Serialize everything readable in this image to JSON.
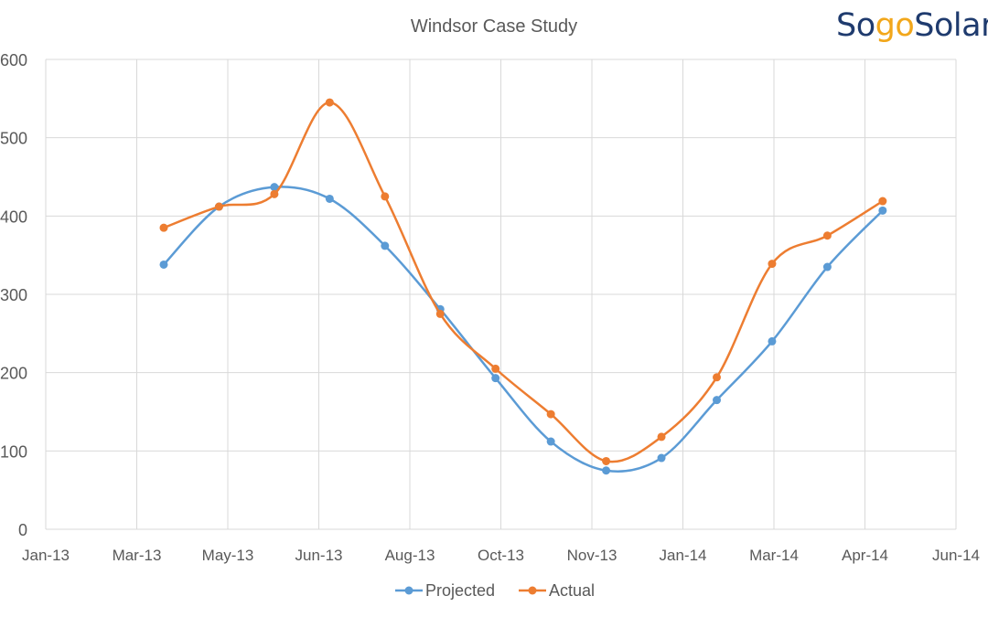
{
  "logo": {
    "text": "SogoSolar",
    "part1": "So",
    "part2": "go",
    "part3": "Solar",
    "primary_color": "#1f3b6e",
    "accent_color": "#f2a71b"
  },
  "chart_data": {
    "type": "line",
    "title": "Windsor Case Study",
    "xlabel": "",
    "ylabel": "",
    "ylim": [
      0,
      600
    ],
    "yticks": [
      0,
      100,
      200,
      300,
      400,
      500,
      600
    ],
    "xtick_labels": [
      "Jan-13",
      "Mar-13",
      "May-13",
      "Jun-13",
      "Aug-13",
      "Oct-13",
      "Nov-13",
      "Jan-14",
      "Mar-14",
      "Apr-14",
      "Jun-14"
    ],
    "x": [
      "Apr-13",
      "May-13",
      "Jun-13",
      "Jul-13",
      "Aug-13",
      "Sep-13",
      "Oct-13",
      "Nov-13",
      "Dec-13",
      "Jan-14",
      "Feb-14",
      "Mar-14",
      "Apr-14",
      "May-14"
    ],
    "grid": true,
    "legend_position": "bottom",
    "smooth": true,
    "series": [
      {
        "name": "Projected",
        "color": "#5b9bd5",
        "values": [
          338,
          412,
          437,
          422,
          362,
          281,
          193,
          112,
          75,
          91,
          165,
          240,
          335,
          407
        ]
      },
      {
        "name": "Actual",
        "color": "#ed7d31",
        "values": [
          385,
          412,
          428,
          545,
          425,
          275,
          205,
          147,
          87,
          118,
          194,
          339,
          375,
          419
        ]
      }
    ]
  }
}
